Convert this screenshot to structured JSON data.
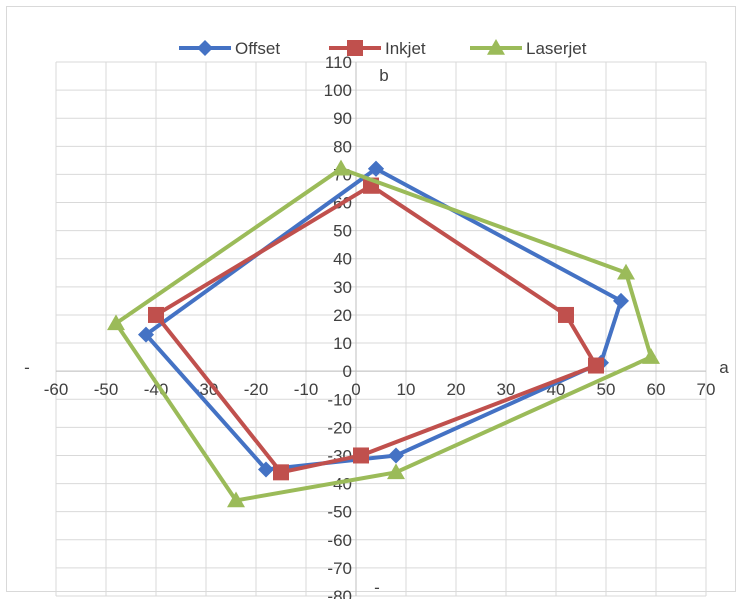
{
  "chart_data": {
    "type": "line",
    "title": "",
    "xlabel": "a",
    "ylabel": "b",
    "x_neg_label": "-",
    "y_neg_label": "-",
    "xlim": [
      -60,
      70
    ],
    "ylim": [
      -80,
      110
    ],
    "x_ticks": [
      -60,
      -50,
      -40,
      -30,
      -20,
      -10,
      0,
      10,
      20,
      30,
      40,
      50,
      60,
      70
    ],
    "y_ticks": [
      -80,
      -70,
      -60,
      -50,
      -40,
      -30,
      -20,
      -10,
      0,
      10,
      20,
      30,
      40,
      50,
      60,
      70,
      80,
      90,
      100,
      110
    ],
    "grid": true,
    "legend_position": "top",
    "series": [
      {
        "name": "Offset",
        "color": "#4472C4",
        "marker": "diamond",
        "points": [
          [
            4,
            72
          ],
          [
            53,
            25
          ],
          [
            49,
            3
          ],
          [
            8,
            -30
          ],
          [
            -18,
            -35
          ],
          [
            -42,
            13
          ],
          [
            4,
            72
          ]
        ]
      },
      {
        "name": "Inkjet",
        "color": "#C0504D",
        "marker": "square",
        "points": [
          [
            3,
            66
          ],
          [
            42,
            20
          ],
          [
            48,
            2
          ],
          [
            1,
            -30
          ],
          [
            -15,
            -36
          ],
          [
            -40,
            20
          ],
          [
            3,
            66
          ]
        ]
      },
      {
        "name": "Laserjet",
        "color": "#9BBB59",
        "marker": "triangle",
        "points": [
          [
            -3,
            72
          ],
          [
            54,
            35
          ],
          [
            59,
            5
          ],
          [
            8,
            -36
          ],
          [
            -24,
            -46
          ],
          [
            -48,
            17
          ],
          [
            -3,
            72
          ]
        ]
      }
    ]
  }
}
